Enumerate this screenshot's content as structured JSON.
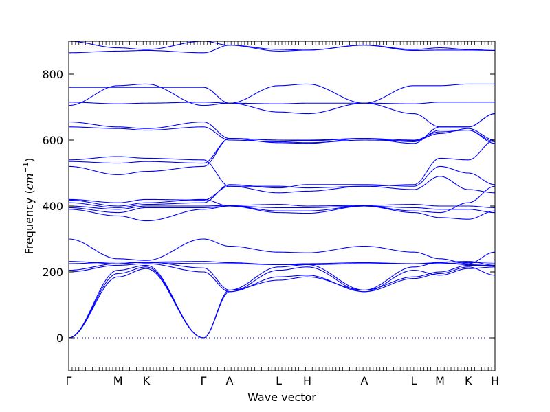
{
  "chart_data": {
    "type": "line",
    "title": "",
    "xlabel": "Wave vector",
    "ylabel": "Frequency (cm⁻¹)",
    "ylabel_parts": {
      "main": "Frequency (",
      "unit": "cm",
      "exp": "−1",
      "close": ")"
    },
    "ylim": [
      -100,
      900
    ],
    "yticks": [
      0,
      200,
      400,
      600,
      800
    ],
    "legend": "none",
    "grid": false,
    "zero_line": true,
    "line_color": "#0000ff",
    "zero_line_color": "#0000ff",
    "high_symmetry_points": [
      {
        "label": "Γ",
        "k": 0.0
      },
      {
        "label": "M",
        "k": 0.1156
      },
      {
        "label": "K",
        "k": 0.1823
      },
      {
        "label": "Γ",
        "k": 0.3161
      },
      {
        "label": "A",
        "k": 0.3774
      },
      {
        "label": "L",
        "k": 0.4929
      },
      {
        "label": "H",
        "k": 0.5597
      },
      {
        "label": "A",
        "k": 0.6935
      },
      {
        "label": "L",
        "k": 0.8097
      },
      {
        "label": "M",
        "k": 0.871
      },
      {
        "label": "K",
        "k": 0.9374
      },
      {
        "label": "H",
        "k": 1.0
      }
    ],
    "segments": [
      {
        "from": "Γ",
        "to": "M",
        "bands": [
          [
            0,
            185
          ],
          [
            0,
            195
          ],
          [
            0,
            205
          ],
          [
            200,
            220
          ],
          [
            205,
            225
          ],
          [
            225,
            230
          ],
          [
            232,
            225
          ],
          [
            300,
            240
          ],
          [
            390,
            370
          ],
          [
            395,
            380
          ],
          [
            400,
            390
          ],
          [
            410,
            395
          ],
          [
            418,
            400
          ],
          [
            420,
            410
          ],
          [
            520,
            495
          ],
          [
            535,
            530
          ],
          [
            540,
            550
          ],
          [
            640,
            635
          ],
          [
            655,
            640
          ],
          [
            705,
            765
          ],
          [
            715,
            710
          ],
          [
            760,
            760
          ],
          [
            865,
            870
          ],
          [
            900,
            880
          ]
        ]
      },
      {
        "from": "M",
        "to": "K",
        "bands": [
          [
            185,
            210
          ],
          [
            195,
            215
          ],
          [
            205,
            220
          ],
          [
            220,
            225
          ],
          [
            225,
            230
          ],
          [
            230,
            228
          ],
          [
            225,
            230
          ],
          [
            240,
            235
          ],
          [
            370,
            355
          ],
          [
            380,
            395
          ],
          [
            390,
            400
          ],
          [
            395,
            405
          ],
          [
            400,
            410
          ],
          [
            410,
            420
          ],
          [
            495,
            505
          ],
          [
            530,
            535
          ],
          [
            550,
            545
          ],
          [
            635,
            630
          ],
          [
            640,
            635
          ],
          [
            765,
            770
          ],
          [
            710,
            712
          ],
          [
            760,
            760
          ],
          [
            870,
            872
          ],
          [
            880,
            875
          ]
        ]
      },
      {
        "from": "K",
        "to": "Γ",
        "bands": [
          [
            210,
            0
          ],
          [
            215,
            0
          ],
          [
            220,
            0
          ],
          [
            225,
            200
          ],
          [
            230,
            212
          ],
          [
            228,
            225
          ],
          [
            230,
            232
          ],
          [
            235,
            300
          ],
          [
            355,
            390
          ],
          [
            395,
            395
          ],
          [
            400,
            400
          ],
          [
            405,
            410
          ],
          [
            410,
            420
          ],
          [
            420,
            418
          ],
          [
            505,
            520
          ],
          [
            535,
            530
          ],
          [
            545,
            540
          ],
          [
            630,
            640
          ],
          [
            635,
            655
          ],
          [
            770,
            705
          ],
          [
            712,
            715
          ],
          [
            760,
            760
          ],
          [
            872,
            865
          ],
          [
            875,
            900
          ]
        ]
      },
      {
        "from": "Γ",
        "to": "A",
        "bands": [
          [
            0,
            140
          ],
          [
            0,
            145
          ],
          [
            200,
            140
          ],
          [
            212,
            145
          ],
          [
            225,
            225
          ],
          [
            232,
            228
          ],
          [
            300,
            278
          ],
          [
            390,
            400
          ],
          [
            395,
            400
          ],
          [
            400,
            402
          ],
          [
            410,
            465
          ],
          [
            418,
            460
          ],
          [
            420,
            400
          ],
          [
            520,
            605
          ],
          [
            530,
            605
          ],
          [
            540,
            460
          ],
          [
            640,
            600
          ],
          [
            655,
            605
          ],
          [
            705,
            712
          ],
          [
            715,
            712
          ],
          [
            760,
            712
          ],
          [
            865,
            888
          ],
          [
            900,
            888
          ]
        ]
      },
      {
        "from": "A",
        "to": "L",
        "bands": [
          [
            140,
            185
          ],
          [
            145,
            175
          ],
          [
            140,
            205
          ],
          [
            145,
            215
          ],
          [
            225,
            222
          ],
          [
            228,
            222
          ],
          [
            278,
            260
          ],
          [
            400,
            385
          ],
          [
            400,
            395
          ],
          [
            402,
            405
          ],
          [
            465,
            455
          ],
          [
            460,
            440
          ],
          [
            400,
            380
          ],
          [
            605,
            600
          ],
          [
            605,
            592
          ],
          [
            460,
            460
          ],
          [
            600,
            595
          ],
          [
            605,
            600
          ],
          [
            712,
            765
          ],
          [
            712,
            685
          ],
          [
            712,
            710
          ],
          [
            888,
            875
          ],
          [
            888,
            870
          ]
        ]
      },
      {
        "from": "L",
        "to": "H",
        "bands": [
          [
            185,
            190
          ],
          [
            175,
            185
          ],
          [
            205,
            215
          ],
          [
            215,
            222
          ],
          [
            222,
            222
          ],
          [
            222,
            225
          ],
          [
            260,
            258
          ],
          [
            385,
            385
          ],
          [
            395,
            395
          ],
          [
            405,
            400
          ],
          [
            455,
            465
          ],
          [
            440,
            445
          ],
          [
            380,
            378
          ],
          [
            600,
            598
          ],
          [
            592,
            590
          ],
          [
            460,
            455
          ],
          [
            595,
            592
          ],
          [
            600,
            600
          ],
          [
            765,
            770
          ],
          [
            685,
            680
          ],
          [
            710,
            712
          ],
          [
            875,
            873
          ],
          [
            870,
            873
          ]
        ]
      },
      {
        "from": "H",
        "to": "A",
        "bands": [
          [
            190,
            140
          ],
          [
            185,
            145
          ],
          [
            215,
            140
          ],
          [
            222,
            145
          ],
          [
            222,
            225
          ],
          [
            225,
            228
          ],
          [
            258,
            278
          ],
          [
            385,
            400
          ],
          [
            395,
            400
          ],
          [
            400,
            402
          ],
          [
            465,
            465
          ],
          [
            445,
            460
          ],
          [
            378,
            400
          ],
          [
            598,
            605
          ],
          [
            590,
            605
          ],
          [
            455,
            460
          ],
          [
            592,
            600
          ],
          [
            600,
            605
          ],
          [
            770,
            712
          ],
          [
            680,
            712
          ],
          [
            712,
            712
          ],
          [
            873,
            888
          ],
          [
            873,
            888
          ]
        ]
      },
      {
        "from": "A",
        "to": "L",
        "bands": [
          [
            140,
            180
          ],
          [
            145,
            185
          ],
          [
            140,
            205
          ],
          [
            145,
            215
          ],
          [
            225,
            225
          ],
          [
            228,
            225
          ],
          [
            278,
            260
          ],
          [
            400,
            380
          ],
          [
            400,
            395
          ],
          [
            402,
            405
          ],
          [
            465,
            460
          ],
          [
            460,
            450
          ],
          [
            400,
            385
          ],
          [
            605,
            595
          ],
          [
            605,
            590
          ],
          [
            460,
            465
          ],
          [
            600,
            598
          ],
          [
            605,
            600
          ],
          [
            712,
            765
          ],
          [
            712,
            680
          ],
          [
            712,
            710
          ],
          [
            888,
            875
          ],
          [
            888,
            872
          ]
        ]
      },
      {
        "from": "L",
        "to": "M",
        "bands": [
          [
            180,
            195
          ],
          [
            185,
            200
          ],
          [
            205,
            190
          ],
          [
            215,
            230
          ],
          [
            225,
            228
          ],
          [
            225,
            225
          ],
          [
            260,
            240
          ],
          [
            380,
            365
          ],
          [
            395,
            390
          ],
          [
            405,
            400
          ],
          [
            460,
            520
          ],
          [
            450,
            490
          ],
          [
            385,
            380
          ],
          [
            595,
            630
          ],
          [
            590,
            640
          ],
          [
            465,
            545
          ],
          [
            598,
            620
          ],
          [
            600,
            625
          ],
          [
            765,
            765
          ],
          [
            680,
            640
          ],
          [
            710,
            715
          ],
          [
            875,
            880
          ],
          [
            872,
            873
          ]
        ]
      },
      {
        "from": "M",
        "to": "K",
        "bands": [
          [
            195,
            215
          ],
          [
            200,
            220
          ],
          [
            190,
            210
          ],
          [
            230,
            232
          ],
          [
            228,
            222
          ],
          [
            225,
            228
          ],
          [
            240,
            225
          ],
          [
            365,
            360
          ],
          [
            390,
            390
          ],
          [
            400,
            400
          ],
          [
            520,
            500
          ],
          [
            490,
            450
          ],
          [
            380,
            410
          ],
          [
            630,
            630
          ],
          [
            640,
            640
          ],
          [
            545,
            540
          ],
          [
            620,
            635
          ],
          [
            625,
            630
          ],
          [
            765,
            770
          ],
          [
            640,
            640
          ],
          [
            715,
            715
          ],
          [
            880,
            875
          ],
          [
            873,
            873
          ]
        ]
      },
      {
        "from": "K",
        "to": "H",
        "bands": [
          [
            215,
            190
          ],
          [
            220,
            220
          ],
          [
            210,
            215
          ],
          [
            232,
            220
          ],
          [
            222,
            225
          ],
          [
            228,
            230
          ],
          [
            225,
            260
          ],
          [
            360,
            385
          ],
          [
            390,
            380
          ],
          [
            400,
            395
          ],
          [
            500,
            465
          ],
          [
            450,
            440
          ],
          [
            410,
            460
          ],
          [
            630,
            595
          ],
          [
            640,
            680
          ],
          [
            540,
            600
          ],
          [
            635,
            600
          ],
          [
            630,
            590
          ],
          [
            770,
            770
          ],
          [
            640,
            680
          ],
          [
            715,
            715
          ],
          [
            875,
            872
          ],
          [
            873,
            872
          ]
        ]
      }
    ]
  }
}
